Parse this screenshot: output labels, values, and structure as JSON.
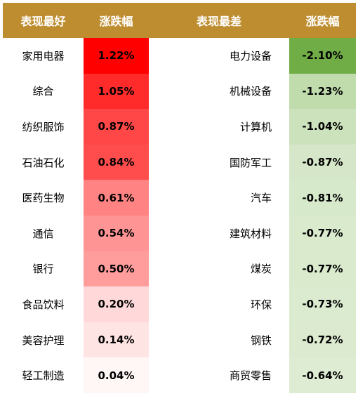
{
  "chart_data": {
    "type": "table",
    "headers": {
      "best_name": "表现最好",
      "best_change": "涨跌幅",
      "worst_name": "表现最差",
      "worst_change": "涨跌幅"
    },
    "best": [
      {
        "sector": "家用电器",
        "change": "1.22%",
        "value": 1.22
      },
      {
        "sector": "综合",
        "change": "1.05%",
        "value": 1.05
      },
      {
        "sector": "纺织服饰",
        "change": "0.87%",
        "value": 0.87
      },
      {
        "sector": "石油石化",
        "change": "0.84%",
        "value": 0.84
      },
      {
        "sector": "医药生物",
        "change": "0.61%",
        "value": 0.61
      },
      {
        "sector": "通信",
        "change": "0.54%",
        "value": 0.54
      },
      {
        "sector": "银行",
        "change": "0.50%",
        "value": 0.5
      },
      {
        "sector": "食品饮料",
        "change": "0.20%",
        "value": 0.2
      },
      {
        "sector": "美容护理",
        "change": "0.14%",
        "value": 0.14
      },
      {
        "sector": "轻工制造",
        "change": "0.04%",
        "value": 0.04
      }
    ],
    "worst": [
      {
        "sector": "电力设备",
        "change": "-2.10%",
        "value": -2.1
      },
      {
        "sector": "机械设备",
        "change": "-1.23%",
        "value": -1.23
      },
      {
        "sector": "计算机",
        "change": "-1.04%",
        "value": -1.04
      },
      {
        "sector": "国防军工",
        "change": "-0.87%",
        "value": -0.87
      },
      {
        "sector": "汽车",
        "change": "-0.81%",
        "value": -0.81
      },
      {
        "sector": "建筑材料",
        "change": "-0.77%",
        "value": -0.77
      },
      {
        "sector": "煤炭",
        "change": "-0.77%",
        "value": -0.77
      },
      {
        "sector": "环保",
        "change": "-0.73%",
        "value": -0.73
      },
      {
        "sector": "钢铁",
        "change": "-0.72%",
        "value": -0.72
      },
      {
        "sector": "商贸零售",
        "change": "-0.64%",
        "value": -0.64
      }
    ]
  },
  "colors": {
    "header_bg": "#BE8D2F",
    "header_text": "#FFFFFF",
    "best_cells": [
      "#FF0000",
      "#FF2A2A",
      "#FF4747",
      "#FF4C4C",
      "#FF8383",
      "#FF9494",
      "#FF9D9D",
      "#FFD9D9",
      "#FFE4E4",
      "#FFF6F6"
    ],
    "worst_cells": [
      "#70AD47",
      "#C0DCAC",
      "#CCE2BC",
      "#D5E7C8",
      "#D7E9CB",
      "#D9EACD",
      "#D9EACD",
      "#DBEBD0",
      "#DCEBD0",
      "#DDECD2"
    ]
  }
}
